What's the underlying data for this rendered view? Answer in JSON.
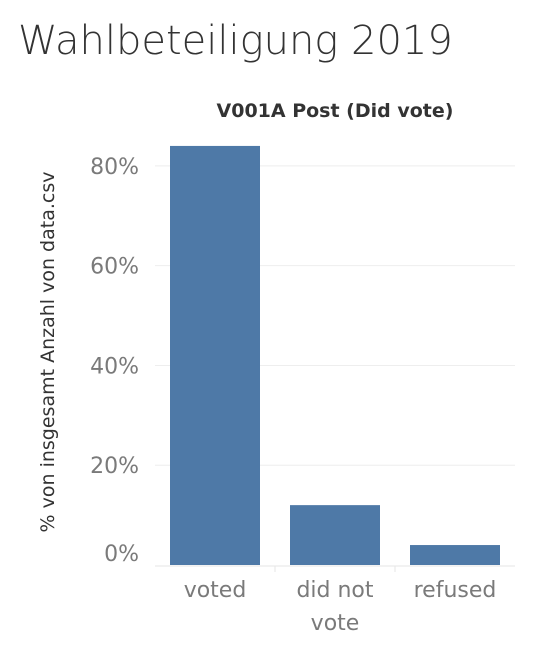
{
  "title": "Wahlbeteiligung 2019",
  "chart_data": {
    "type": "bar",
    "subtitle": "V001A Post (Did vote)",
    "ylabel": "% von insgesamt Anzahl von data.csv",
    "categories": [
      "voted",
      "did not\nvote",
      "refused"
    ],
    "values": [
      84,
      12,
      4
    ],
    "ylim": [
      0,
      90
    ],
    "yticks": [
      0,
      20,
      40,
      60,
      80
    ],
    "ytick_labels": [
      "0%",
      "20%",
      "40%",
      "60%",
      "80%"
    ],
    "bar_color": "#4e79a7",
    "grid": true
  }
}
